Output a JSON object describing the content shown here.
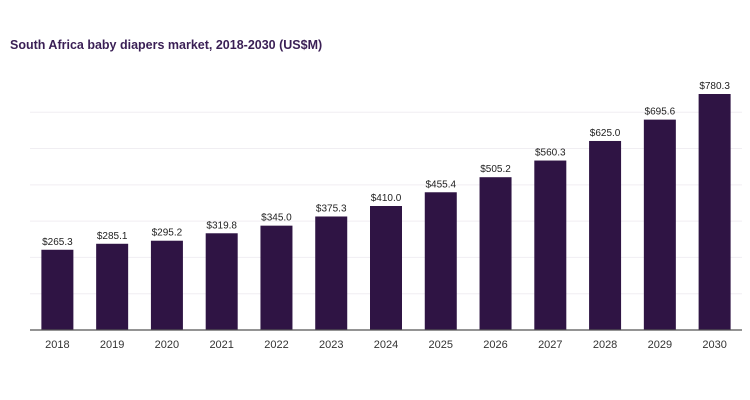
{
  "chart_data": {
    "type": "bar",
    "title": "South Africa baby diapers market, 2018-2030 (US$M)",
    "xlabel": "",
    "ylabel": "",
    "ylim": [
      0,
      820
    ],
    "grid": true,
    "legend": "none",
    "bar_color": "#2f1444",
    "categories": [
      "2018",
      "2019",
      "2020",
      "2021",
      "2022",
      "2023",
      "2024",
      "2025",
      "2026",
      "2027",
      "2028",
      "2029",
      "2030"
    ],
    "values": [
      265.3,
      285.1,
      295.2,
      319.8,
      345.0,
      375.3,
      410.0,
      455.4,
      505.2,
      560.3,
      625.0,
      695.6,
      780.3
    ],
    "value_labels": [
      "$265.3",
      "$285.1",
      "$295.2",
      "$319.8",
      "$345.0",
      "$375.3",
      "$410.0",
      "$455.4",
      "$505.2",
      "$560.3",
      "$625.0",
      "$695.6",
      "$780.3"
    ]
  }
}
